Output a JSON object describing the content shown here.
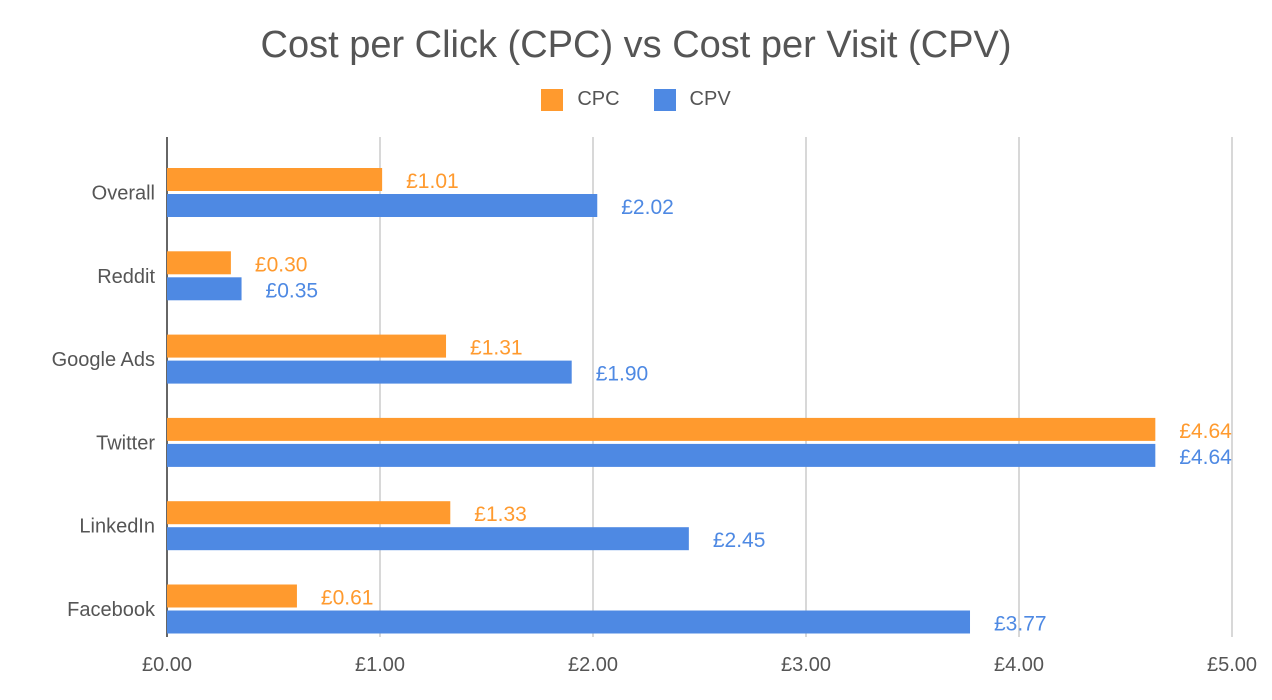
{
  "chart_data": {
    "type": "bar",
    "orientation": "horizontal",
    "title": "Cost per Click (CPC) vs Cost per Visit (CPV)",
    "xlabel": "",
    "ylabel": "",
    "categories": [
      "Overall",
      "Reddit",
      "Google Ads",
      "Twitter",
      "LinkedIn",
      "Facebook"
    ],
    "series": [
      {
        "name": "CPC",
        "color": "#FF9A2E",
        "values": [
          1.01,
          0.3,
          1.31,
          4.64,
          1.33,
          0.61
        ],
        "labels": [
          "£1.01",
          "£0.30",
          "£1.31",
          "£4.64",
          "£1.33",
          "£0.61"
        ]
      },
      {
        "name": "CPV",
        "color": "#4E89E3",
        "values": [
          2.02,
          0.35,
          1.9,
          4.64,
          2.45,
          3.77
        ],
        "labels": [
          "£2.02",
          "£0.35",
          "£1.90",
          "£4.64",
          "£2.45",
          "£3.77"
        ]
      }
    ],
    "xlim": [
      0,
      5
    ],
    "xticks": [
      0,
      1,
      2,
      3,
      4,
      5
    ],
    "xtick_labels": [
      "£0.00",
      "£1.00",
      "£2.00",
      "£3.00",
      "£4.00",
      "£5.00"
    ],
    "grid": "vertical",
    "legend_position": "top-center"
  }
}
